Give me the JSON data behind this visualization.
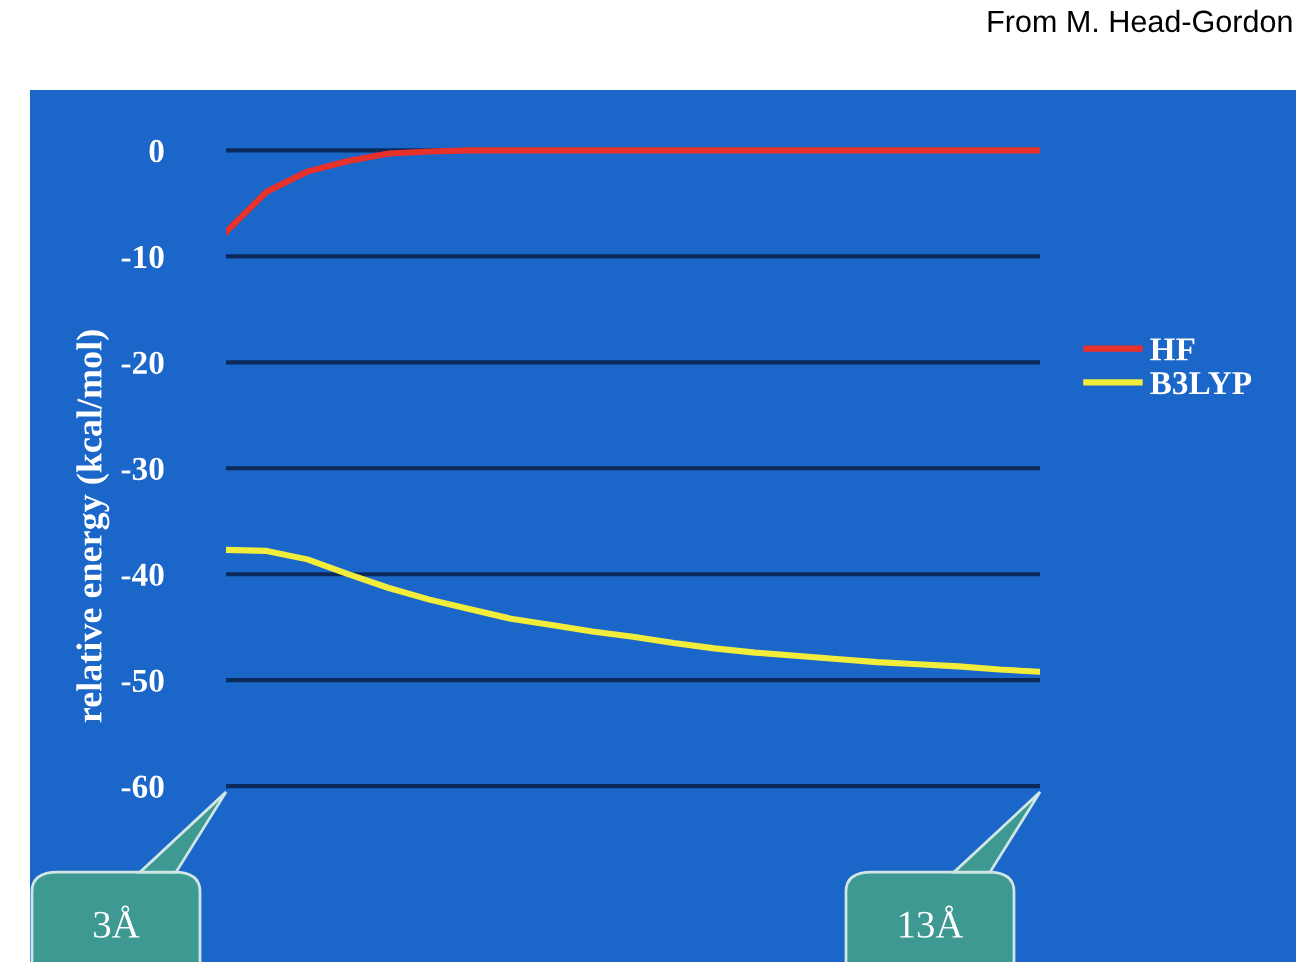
{
  "chart_data": {
    "type": "line",
    "ylabel": "relative energy (kcal/mol)",
    "categories": [
      null,
      null,
      null,
      null,
      null,
      null,
      null,
      null,
      null,
      null,
      null,
      null,
      null,
      null,
      null,
      null,
      null,
      null,
      null,
      null,
      null
    ],
    "ylim": [
      -76.6,
      5.7
    ],
    "yticks": [
      0,
      -10,
      -20,
      -30,
      -40,
      -50,
      -60
    ],
    "tick_labels": "y",
    "grid": "y",
    "legend": "right",
    "marker": "none",
    "line_style": "solid",
    "series": [
      {
        "name": "HF",
        "color": "#e8312a",
        "values": [
          -7.7,
          -3.9,
          -2.0,
          -1.0,
          -0.3,
          -0.1,
          0,
          0,
          0,
          0,
          0,
          0,
          0,
          0,
          0,
          0,
          0,
          0,
          0,
          0,
          0
        ]
      },
      {
        "name": "B3LYP",
        "color": "#f2ec3a",
        "values": [
          -37.7,
          -37.8,
          -38.6,
          -40.0,
          -41.3,
          -42.4,
          -43.3,
          -44.2,
          -44.8,
          -45.4,
          -45.9,
          -46.5,
          -47.0,
          -47.4,
          -47.7,
          -48.0,
          -48.3,
          -48.5,
          -48.7,
          -49.0,
          -49.2
        ]
      }
    ],
    "annotations": [
      "3Å",
      "13Å",
      "From M. Head-Gordon"
    ]
  }
}
